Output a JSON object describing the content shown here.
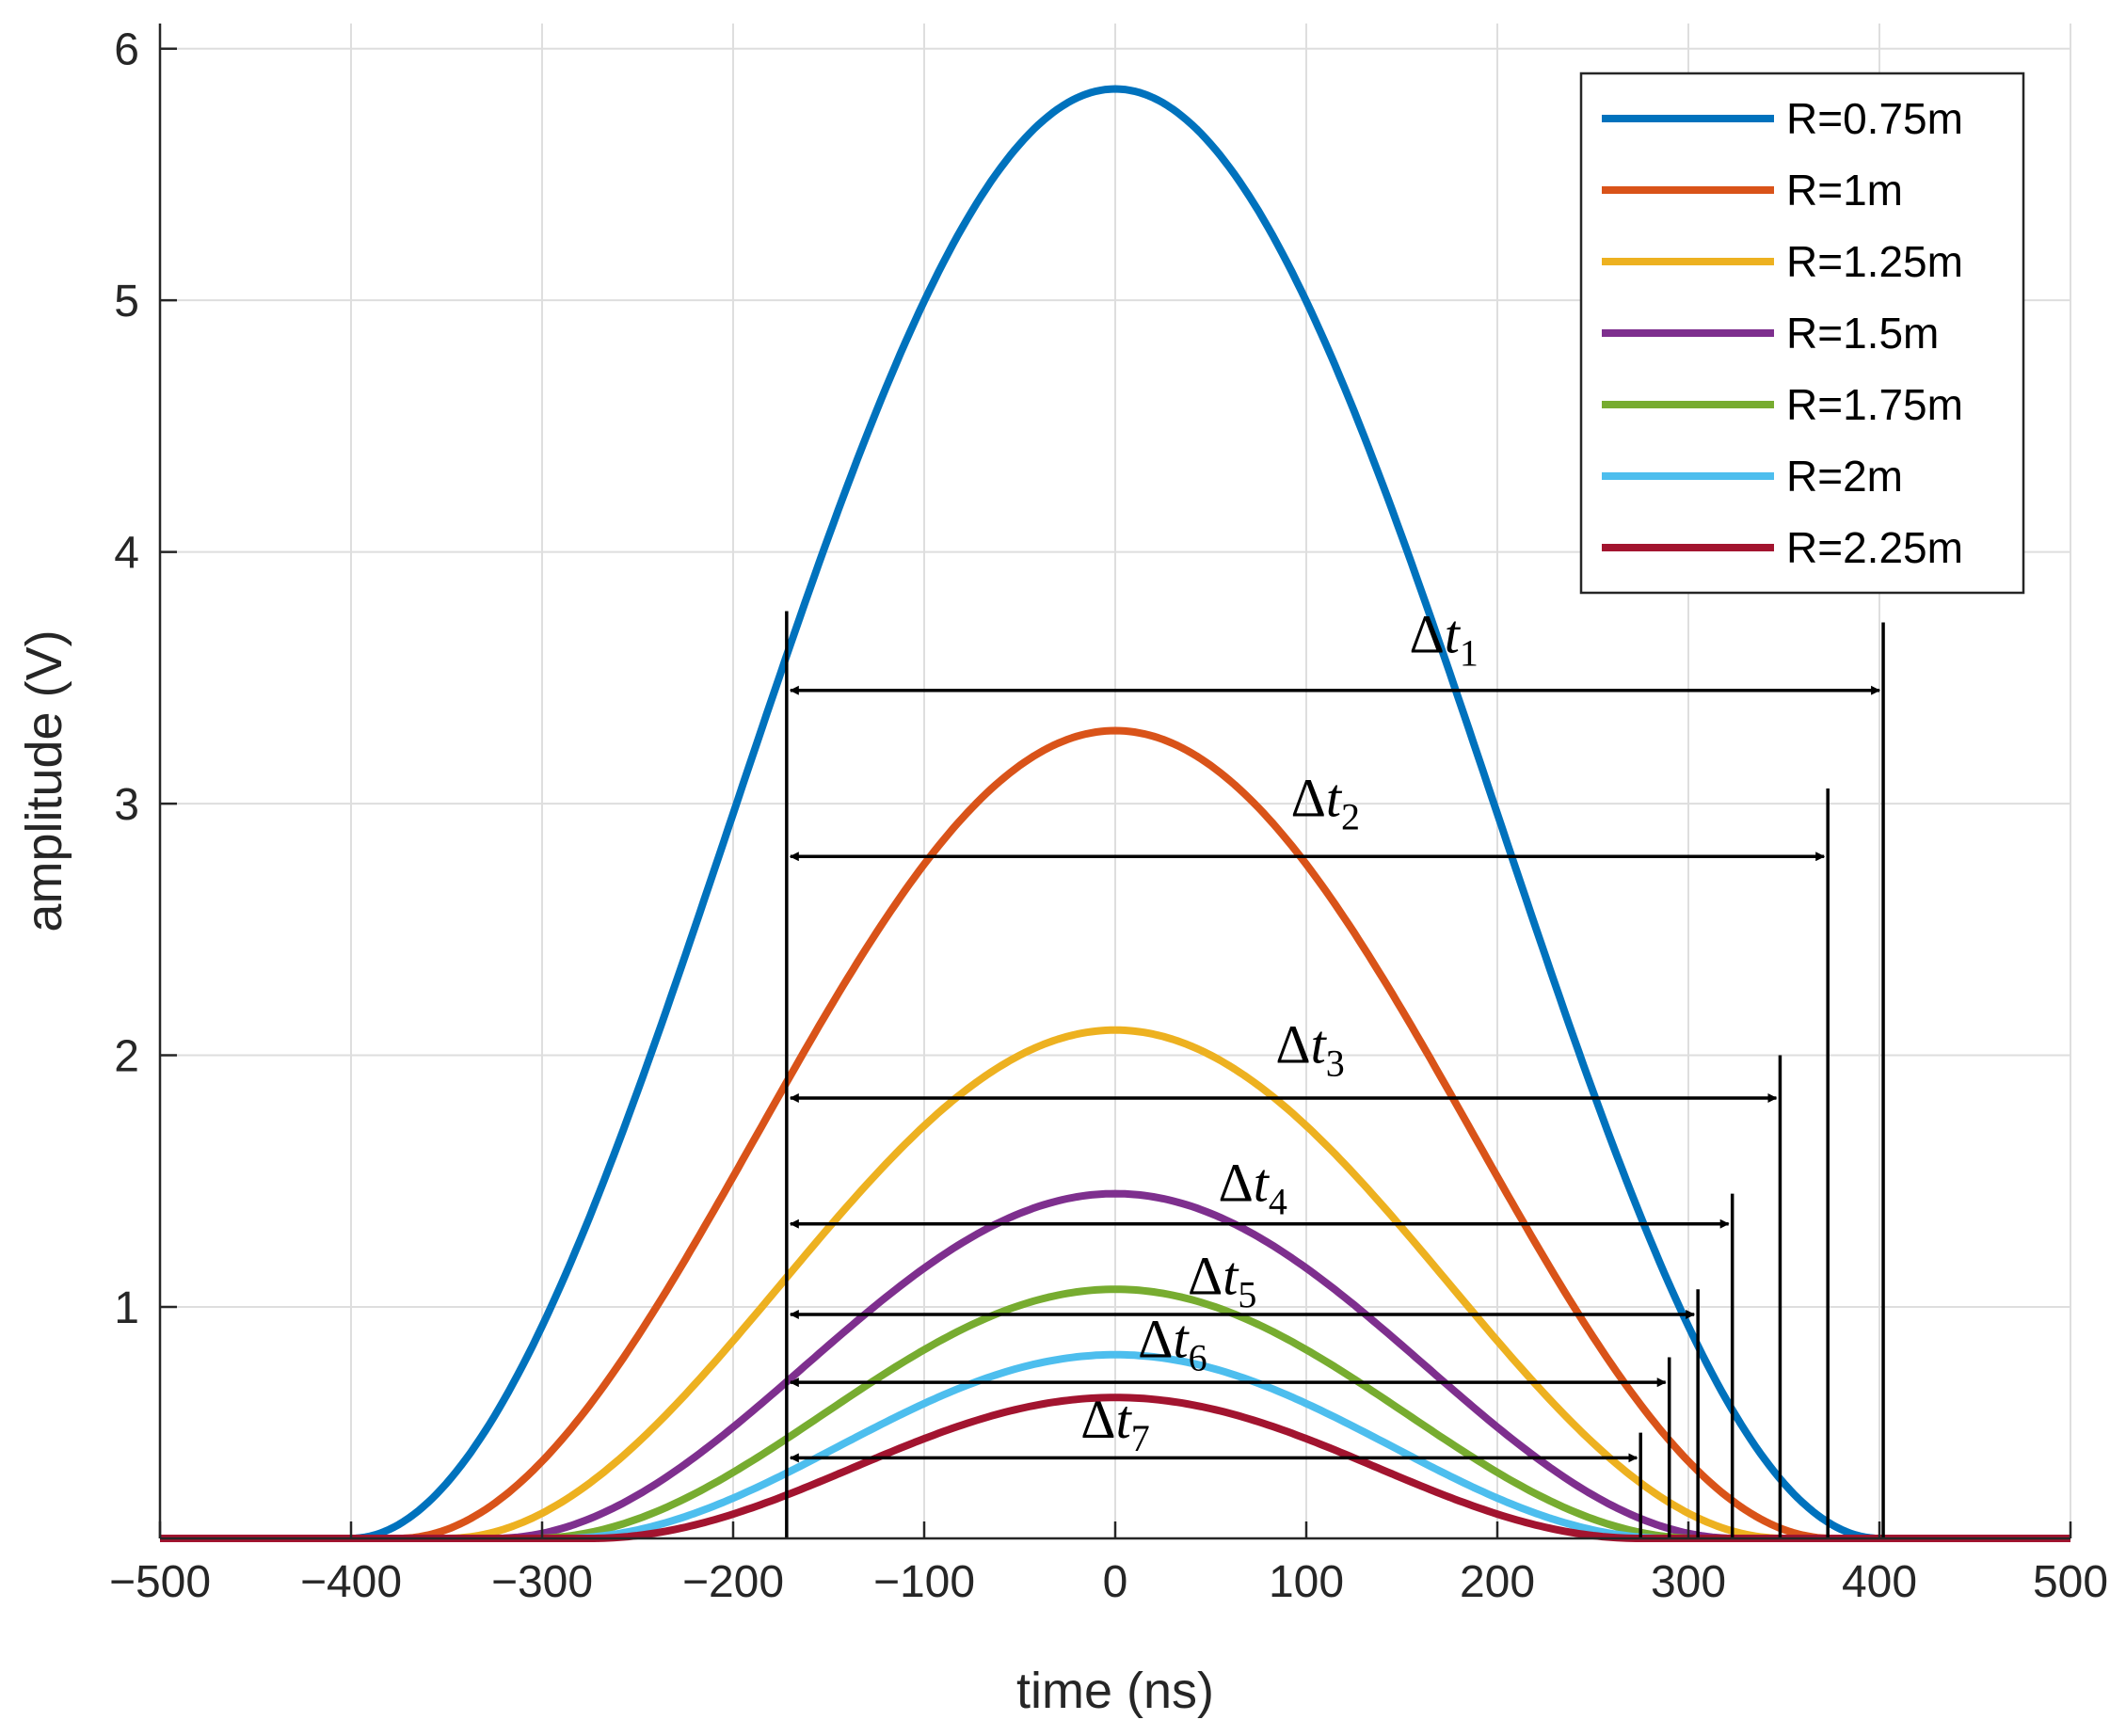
{
  "chart_data": {
    "type": "line",
    "xlabel": "time (ns)",
    "ylabel": "amplitude (V)",
    "xlim": [
      -500,
      500
    ],
    "ylim": [
      0.08,
      6.1
    ],
    "xticks": [
      -500,
      -400,
      -300,
      -200,
      -100,
      0,
      100,
      200,
      300,
      400,
      500
    ],
    "xtick_labels": [
      "−500",
      "−400",
      "−300",
      "−200",
      "−100",
      "0",
      "100",
      "200",
      "300",
      "400",
      "500"
    ],
    "yticks": [
      1,
      2,
      3,
      4,
      5,
      6
    ],
    "ytick_labels": [
      "1",
      "2",
      "3",
      "4",
      "5",
      "6"
    ],
    "grid": true,
    "legend_position": "top-right",
    "baseline": 0.08,
    "series": [
      {
        "name": "R=0.75m",
        "color": "#0072BD",
        "peak": 5.84,
        "start": -400,
        "end": 400
      },
      {
        "name": "R=1m",
        "color": "#D95319",
        "peak": 3.29,
        "start": -375,
        "end": 375
      },
      {
        "name": "R=1.25m",
        "color": "#EDB120",
        "peak": 2.1,
        "start": -350,
        "end": 350
      },
      {
        "name": "R=1.5m",
        "color": "#7E2F8E",
        "peak": 1.45,
        "start": -325,
        "end": 325
      },
      {
        "name": "R=1.75m",
        "color": "#77AC30",
        "peak": 1.07,
        "start": -305,
        "end": 305
      },
      {
        "name": "R=2m",
        "color": "#4DBEEE",
        "peak": 0.81,
        "start": -290,
        "end": 290
      },
      {
        "name": "R=2.25m",
        "color": "#A2142F",
        "peak": 0.64,
        "start": -275,
        "end": 275
      }
    ],
    "annotations": [
      {
        "symbol": "Δ",
        "var": "t",
        "sub": "1",
        "x_start": -172,
        "x_end": 402,
        "y": 3.45,
        "label_x": 172,
        "label_y": 3.6,
        "line_top": 3.72
      },
      {
        "symbol": "Δ",
        "var": "t",
        "sub": "2",
        "x_start": -172,
        "x_end": 373,
        "y": 2.79,
        "label_x": 110,
        "label_y": 2.95,
        "line_top": 3.06
      },
      {
        "symbol": "Δ",
        "var": "t",
        "sub": "3",
        "x_start": -172,
        "x_end": 348,
        "y": 1.83,
        "label_x": 102,
        "label_y": 1.97,
        "line_top": 2.0
      },
      {
        "symbol": "Δ",
        "var": "t",
        "sub": "4",
        "x_start": -172,
        "x_end": 323,
        "y": 1.33,
        "label_x": 72,
        "label_y": 1.42,
        "line_top": 1.45
      },
      {
        "symbol": "Δ",
        "var": "t",
        "sub": "5",
        "x_start": -172,
        "x_end": 305,
        "y": 0.97,
        "label_x": 56,
        "label_y": 1.05,
        "line_top": 1.07
      },
      {
        "symbol": "Δ",
        "var": "t",
        "sub": "6",
        "x_start": -172,
        "x_end": 290,
        "y": 0.7,
        "label_x": 30,
        "label_y": 0.8,
        "line_top": 0.8
      },
      {
        "symbol": "Δ",
        "var": "t",
        "sub": "7",
        "x_start": -172,
        "x_end": 275,
        "y": 0.4,
        "label_x": 0,
        "label_y": 0.48,
        "line_top": 0.5
      }
    ]
  }
}
